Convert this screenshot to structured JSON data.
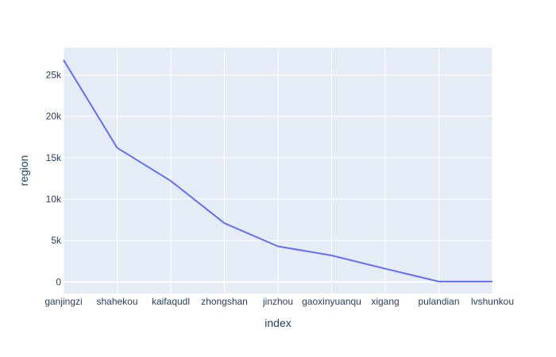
{
  "chart_data": {
    "type": "line",
    "xlabel": "index",
    "ylabel": "region",
    "categories": [
      "ganjingzi",
      "shahekou",
      "kaifaqudl",
      "zhongshan",
      "jinzhou",
      "gaoxinyuanqu",
      "xigang",
      "pulandian",
      "lvshunkou"
    ],
    "series": [
      {
        "values": [
          26800,
          16200,
          12200,
          7100,
          4300,
          3200,
          1600,
          50,
          50
        ]
      }
    ],
    "ylim": [
      -1400,
      28300
    ],
    "yticks": [
      0,
      5000,
      10000,
      15000,
      20000,
      25000
    ],
    "ytick_labels": [
      "0",
      "5k",
      "10k",
      "15k",
      "20k",
      "25k"
    ],
    "grid": true,
    "colors": {
      "line": "#636efa",
      "plot_bg": "#e5ecf6",
      "grid": "#ffffff",
      "text": "#2a3f5f"
    }
  }
}
